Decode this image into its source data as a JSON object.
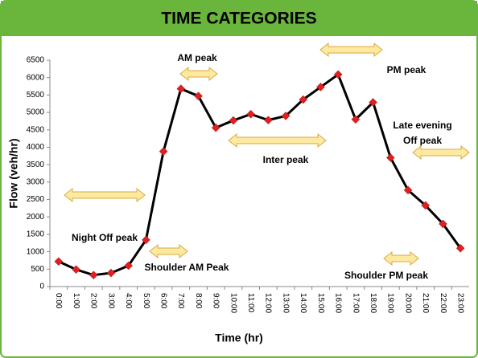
{
  "chart_data": {
    "type": "line",
    "title": "TIME CATEGORIES",
    "xlabel": "Time (hr)",
    "ylabel": "Flow  (veh/hr)",
    "categories": [
      "0:00",
      "1:00",
      "2:00",
      "3:00",
      "4:00",
      "5:00",
      "6:00",
      "7:00",
      "8:00",
      "9:00",
      "10:00",
      "11:00",
      "12:00",
      "13:00",
      "14:00",
      "15:00",
      "16:00",
      "17:00",
      "18:00",
      "19:00",
      "20:00",
      "21:00",
      "22:00",
      "23:00"
    ],
    "series": [
      {
        "color": "#000000",
        "marker_color": "#e02020",
        "values": [
          720,
          490,
          330,
          390,
          600,
          1340,
          3880,
          5680,
          5470,
          4560,
          4770,
          4950,
          4780,
          4900,
          5370,
          5730,
          6090,
          4800,
          5290,
          3700,
          2770,
          2330,
          1800,
          1100
        ]
      }
    ],
    "ylim": [
      0,
      6500
    ],
    "yticks": [
      0,
      500,
      1000,
      1500,
      2000,
      2500,
      3000,
      3500,
      4000,
      4500,
      5000,
      5500,
      6000,
      6500
    ],
    "annotations": [
      "AM peak",
      "PM peak",
      "Late evening",
      "Off peak",
      "Inter peak",
      "Night Off peak",
      "Shoulder AM Peak",
      "Shoulder PM peak"
    ]
  }
}
